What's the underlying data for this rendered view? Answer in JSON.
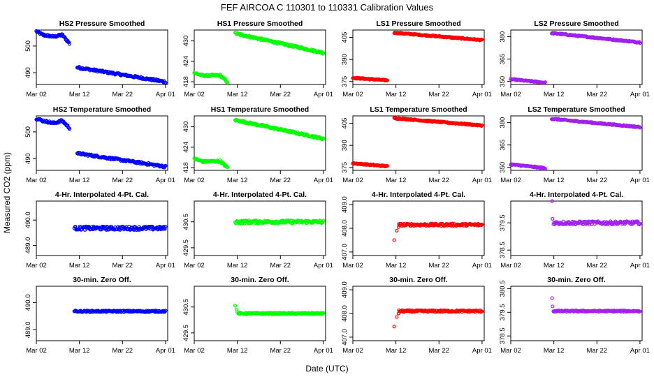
{
  "figure": {
    "title": "FEF   AIRCOA C   110301 to 110331   Calibration Values",
    "ylabel": "Measured CO2 (ppm)",
    "xlabel": "Date (UTC)"
  },
  "colors": {
    "HS2": "#0000ff",
    "HS1": "#00ff00",
    "LS1": "#ff0000",
    "LS2": "#a020f0"
  },
  "chart_data": [
    {
      "type": "scatter",
      "title": "HS2 Pressure Smoothed",
      "series": "HS2",
      "xticks": [
        "Mar 02",
        "Mar 12",
        "Mar 22",
        "Apr 01"
      ],
      "xlim": [
        0,
        30.5
      ],
      "yticks": [
        "490",
        "500"
      ],
      "yvals": [
        490,
        500
      ],
      "ylim": [
        485.6,
        506
      ],
      "segments": [
        {
          "x": [
            0,
            1.5,
            4,
            6,
            7.7
          ],
          "y": [
            505.5,
            504.2,
            503.5,
            504.2,
            501.0
          ],
          "noise": 0.4
        },
        {
          "x": [
            9.5,
            30
          ],
          "y": [
            492,
            486.6
          ],
          "noise": 0.4
        }
      ]
    },
    {
      "type": "scatter",
      "title": "HS1 Pressure Smoothed",
      "series": "HS1",
      "xticks": [
        "Mar 02",
        "Mar 12",
        "Mar 22",
        "Apr 01"
      ],
      "xlim": [
        0,
        30.5
      ],
      "yticks": [
        "418",
        "424",
        "430"
      ],
      "yvals": [
        418,
        424,
        430
      ],
      "ylim": [
        417.2,
        433.2
      ],
      "segments": [
        {
          "x": [
            0,
            2,
            6,
            7.7
          ],
          "y": [
            420.6,
            419.8,
            419.9,
            417.9
          ],
          "noise": 0.3
        },
        {
          "x": [
            9.5,
            30
          ],
          "y": [
            432.2,
            426.5
          ],
          "noise": 0.3
        }
      ]
    },
    {
      "type": "scatter",
      "title": "LS1 Pressure Smoothed",
      "series": "LS1",
      "xticks": [
        "Mar 02",
        "Mar 12",
        "Mar 22",
        "Apr 01"
      ],
      "xlim": [
        0,
        30.5
      ],
      "yticks": [
        "375",
        "390",
        "405"
      ],
      "yvals": [
        375,
        390,
        405
      ],
      "ylim": [
        373,
        410
      ],
      "segments": [
        {
          "x": [
            0,
            8
          ],
          "y": [
            377.5,
            375.8
          ],
          "noise": 0.4
        },
        {
          "x": [
            9.6,
            30
          ],
          "y": [
            408.2,
            403.2
          ],
          "noise": 0.4
        }
      ]
    },
    {
      "type": "scatter",
      "title": "LS2 Pressure Smoothed",
      "series": "LS2",
      "xticks": [
        "Mar 02",
        "Mar 12",
        "Mar 22",
        "Apr 01"
      ],
      "xlim": [
        0,
        30.5
      ],
      "yticks": [
        "350",
        "365",
        "380"
      ],
      "yvals": [
        350,
        365,
        380
      ],
      "ylim": [
        348,
        384.5
      ],
      "segments": [
        {
          "x": [
            0,
            8
          ],
          "y": [
            351.5,
            349.2
          ],
          "noise": 0.4
        },
        {
          "x": [
            9.5,
            30
          ],
          "y": [
            382.5,
            376.2
          ],
          "noise": 0.4
        }
      ]
    },
    {
      "type": "scatter",
      "title": "HS2 Temperature Smoothed",
      "series": "HS2",
      "xticks": [
        "Mar 02",
        "Mar 12",
        "Mar 22",
        "Apr 01"
      ],
      "xlim": [
        0,
        30.5
      ],
      "yticks": [
        "490",
        "500"
      ],
      "yvals": [
        490,
        500
      ],
      "ylim": [
        485.6,
        506
      ],
      "segments": [
        {
          "x": [
            0,
            1.5,
            4,
            6,
            7.7
          ],
          "y": [
            505.0,
            504.2,
            503.3,
            504.2,
            501.5
          ],
          "noise": 0.4
        },
        {
          "x": [
            9.5,
            30
          ],
          "y": [
            492,
            487.0
          ],
          "noise": 0.4
        }
      ]
    },
    {
      "type": "scatter",
      "title": "HS1 Temperature Smoothed",
      "series": "HS1",
      "xticks": [
        "Mar 02",
        "Mar 12",
        "Mar 22",
        "Apr 01"
      ],
      "xlim": [
        0,
        30.5
      ],
      "yticks": [
        "418",
        "424",
        "430"
      ],
      "yvals": [
        418,
        424,
        430
      ],
      "ylim": [
        417.2,
        433.2
      ],
      "segments": [
        {
          "x": [
            0,
            2,
            6,
            7.7
          ],
          "y": [
            420.6,
            419.8,
            419.9,
            418.0
          ],
          "noise": 0.3
        },
        {
          "x": [
            9.5,
            30
          ],
          "y": [
            432.0,
            426.5
          ],
          "noise": 0.3
        }
      ]
    },
    {
      "type": "scatter",
      "title": "LS1 Temperature Smoothed",
      "series": "LS1",
      "xticks": [
        "Mar 02",
        "Mar 12",
        "Mar 22",
        "Apr 01"
      ],
      "xlim": [
        0,
        30.5
      ],
      "yticks": [
        "375",
        "390",
        "405"
      ],
      "yvals": [
        375,
        390,
        405
      ],
      "ylim": [
        373,
        410
      ],
      "segments": [
        {
          "x": [
            0,
            8
          ],
          "y": [
            377.8,
            375.8
          ],
          "noise": 0.4
        },
        {
          "x": [
            9.6,
            30
          ],
          "y": [
            408.5,
            403.5
          ],
          "noise": 0.4
        }
      ]
    },
    {
      "type": "scatter",
      "title": "LS2 Temperature Smoothed",
      "series": "LS2",
      "xticks": [
        "Mar 02",
        "Mar 12",
        "Mar 22",
        "Apr 01"
      ],
      "xlim": [
        0,
        30.5
      ],
      "yticks": [
        "350",
        "365",
        "380"
      ],
      "yvals": [
        350,
        365,
        380
      ],
      "ylim": [
        348,
        384.5
      ],
      "segments": [
        {
          "x": [
            0,
            8
          ],
          "y": [
            352.0,
            349.5
          ],
          "noise": 0.4
        },
        {
          "x": [
            9.5,
            30
          ],
          "y": [
            382.5,
            377.0
          ],
          "noise": 0.4
        }
      ]
    },
    {
      "type": "scatter",
      "title": "4-Hr. Interpolated 4-Pt. Cal.",
      "series": "HS2",
      "xticks": [
        "Mar 02",
        "Mar 12",
        "Mar 22",
        "Apr 01"
      ],
      "xlim": [
        0,
        30.5
      ],
      "yticks": [
        "489.0",
        "490.0"
      ],
      "yvals": [
        489.0,
        490.0
      ],
      "ylim": [
        488.6,
        490.75
      ],
      "segments": [
        {
          "x": [
            8.8,
            30
          ],
          "y": [
            489.68,
            489.68
          ],
          "noise": 0.07
        }
      ]
    },
    {
      "type": "scatter",
      "title": "4-Hr. Interpolated 4-Pt. Cal.",
      "series": "HS1",
      "xticks": [
        "Mar 02",
        "Mar 12",
        "Mar 22",
        "Apr 01"
      ],
      "xlim": [
        0,
        30.5
      ],
      "yticks": [
        "429.5",
        "430.5"
      ],
      "yvals": [
        429.5,
        430.5
      ],
      "ylim": [
        429.2,
        431.3
      ],
      "segments": [
        {
          "x": [
            9.5,
            30
          ],
          "y": [
            430.5,
            430.5
          ],
          "noise": 0.06
        }
      ]
    },
    {
      "type": "scatter",
      "title": "4-Hr. Interpolated 4-Pt. Cal.",
      "series": "LS1",
      "xticks": [
        "Mar 02",
        "Mar 12",
        "Mar 22",
        "Apr 01"
      ],
      "xlim": [
        0,
        30.5
      ],
      "yticks": [
        "407.0",
        "408.0",
        "409.0"
      ],
      "yvals": [
        407.0,
        408.0,
        409.0
      ],
      "ylim": [
        406.85,
        409.15
      ],
      "segments": [
        {
          "x": [
            10.7,
            30
          ],
          "y": [
            408.15,
            408.15
          ],
          "noise": 0.05
        },
        {
          "x": [
            9.6,
            10.2,
            10.6
          ],
          "y": [
            407.5,
            407.9,
            408.05
          ],
          "noise": 0
        }
      ]
    },
    {
      "type": "scatter",
      "title": "4-Hr. Interpolated 4-Pt. Cal.",
      "series": "LS2",
      "xticks": [
        "Mar 02",
        "Mar 12",
        "Mar 22",
        "Apr 01"
      ],
      "xlim": [
        0,
        30.5
      ],
      "yticks": [
        "378.5",
        "379.5"
      ],
      "yvals": [
        378.5,
        379.5
      ],
      "ylim": [
        378.3,
        380.3
      ],
      "segments": [
        {
          "x": [
            9.9,
            30
          ],
          "y": [
            379.5,
            379.5
          ],
          "noise": 0.06
        },
        {
          "x": [
            9.6,
            9.7
          ],
          "y": [
            380.3,
            379.65
          ],
          "noise": 0
        }
      ]
    },
    {
      "type": "scatter",
      "title": "30-min. Zero Off.",
      "series": "HS2",
      "xticks": [
        "Mar 02",
        "Mar 12",
        "Mar 22",
        "Apr 01"
      ],
      "xlim": [
        0,
        30.5
      ],
      "yticks": [
        "489.0",
        "490.0"
      ],
      "yvals": [
        489.0,
        490.0
      ],
      "ylim": [
        488.6,
        490.6
      ],
      "segments": [
        {
          "x": [
            8.8,
            30
          ],
          "y": [
            489.68,
            489.68
          ],
          "noise": 0.03
        }
      ]
    },
    {
      "type": "scatter",
      "title": "30-min. Zero Off.",
      "series": "HS1",
      "xticks": [
        "Mar 02",
        "Mar 12",
        "Mar 22",
        "Apr 01"
      ],
      "xlim": [
        0,
        30.5
      ],
      "yticks": [
        "429.5",
        "430.5"
      ],
      "yvals": [
        429.5,
        430.5
      ],
      "ylim": [
        429.2,
        431.3
      ],
      "segments": [
        {
          "x": [
            10.2,
            30
          ],
          "y": [
            430.25,
            430.25
          ],
          "noise": 0.03
        },
        {
          "x": [
            9.5,
            9.8,
            10.0
          ],
          "y": [
            430.55,
            430.4,
            430.3
          ],
          "noise": 0
        }
      ]
    },
    {
      "type": "scatter",
      "title": "30-min. Zero Off.",
      "series": "LS1",
      "xticks": [
        "Mar 02",
        "Mar 12",
        "Mar 22",
        "Apr 01"
      ],
      "xlim": [
        0,
        30.5
      ],
      "yticks": [
        "407.0",
        "408.0",
        "409.0"
      ],
      "yvals": [
        407.0,
        408.0,
        409.0
      ],
      "ylim": [
        406.85,
        409.15
      ],
      "segments": [
        {
          "x": [
            10.7,
            30
          ],
          "y": [
            408.1,
            408.1
          ],
          "noise": 0.04
        },
        {
          "x": [
            9.6,
            10.2,
            10.6
          ],
          "y": [
            407.45,
            407.85,
            408.0
          ],
          "noise": 0
        }
      ]
    },
    {
      "type": "scatter",
      "title": "30-min. Zero Off.",
      "series": "LS2",
      "xticks": [
        "Mar 02",
        "Mar 12",
        "Mar 22",
        "Apr 01"
      ],
      "xlim": [
        0,
        30.5
      ],
      "yticks": [
        "378.5",
        "379.5",
        "380.5"
      ],
      "yvals": [
        378.5,
        379.5,
        380.5
      ],
      "ylim": [
        378.3,
        380.6
      ],
      "segments": [
        {
          "x": [
            9.9,
            30
          ],
          "y": [
            379.55,
            379.55
          ],
          "noise": 0.03
        },
        {
          "x": [
            9.6,
            9.7
          ],
          "y": [
            380.1,
            379.75
          ],
          "noise": 0
        }
      ]
    }
  ]
}
